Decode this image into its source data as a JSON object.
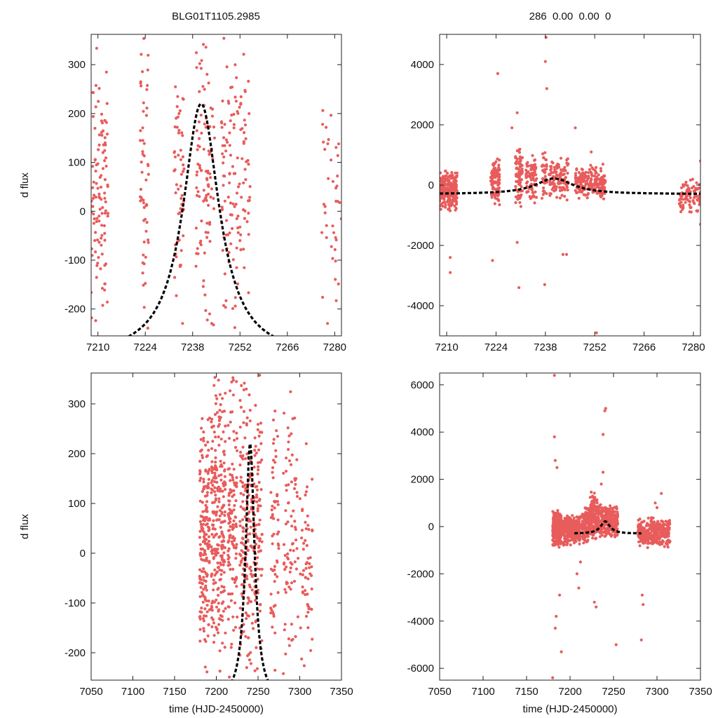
{
  "figure": {
    "title_left": "BLG01T1105.2985",
    "title_right": "286  0.00  0.00  0",
    "ylabel": "d flux",
    "xlabel": "time (HJD-2450000)"
  },
  "colors": {
    "points": "#e85c5c",
    "model": "#000000",
    "axes": "#222222"
  },
  "chart_data": [
    {
      "id": "top-left",
      "type": "scatter",
      "xlim": [
        7208,
        7282
      ],
      "ylim": [
        -255,
        362
      ],
      "xticks": [
        7210,
        7224,
        7238,
        7252,
        7266,
        7280
      ],
      "yticks": [
        -200,
        -100,
        0,
        100,
        200,
        300
      ],
      "xlabel": "",
      "ylabel": "d flux",
      "model": {
        "t0": 7240.5,
        "peak": 220,
        "baseline": -300,
        "width": 6.5,
        "from": 7208,
        "to": 7282
      },
      "clusters": [
        {
          "t_from": 7208,
          "t_to": 7213,
          "y_from": -245,
          "y_to": 345,
          "count": 110
        },
        {
          "t_from": 7222.5,
          "t_to": 7225,
          "y_from": -240,
          "y_to": 360,
          "count": 55
        },
        {
          "t_from": 7232.5,
          "t_to": 7235.5,
          "y_from": -245,
          "y_to": 355,
          "count": 55
        },
        {
          "t_from": 7239,
          "t_to": 7244.5,
          "y_from": -250,
          "y_to": 360,
          "count": 95
        },
        {
          "t_from": 7246.5,
          "t_to": 7255,
          "y_from": -250,
          "y_to": 358,
          "count": 130
        },
        {
          "t_from": 7276,
          "t_to": 7282,
          "y_from": -250,
          "y_to": 265,
          "count": 40
        }
      ]
    },
    {
      "id": "top-right",
      "type": "scatter",
      "xlim": [
        7208,
        7282
      ],
      "ylim": [
        -5000,
        5000
      ],
      "xticks": [
        7210,
        7224,
        7238,
        7252,
        7266,
        7280
      ],
      "yticks": [
        -4000,
        -2000,
        0,
        2000,
        4000
      ],
      "xlabel": "",
      "ylabel": "",
      "model": {
        "t0": 7240.5,
        "peak": 220,
        "baseline": -300,
        "width": 6.5,
        "from": 7208,
        "to": 7282
      },
      "clusters": [
        {
          "t_from": 7208,
          "t_to": 7213,
          "y_from": -900,
          "y_to": 500,
          "count": 260
        },
        {
          "t_from": 7222.5,
          "t_to": 7225,
          "y_from": -700,
          "y_to": 900,
          "count": 110
        },
        {
          "t_from": 7229.5,
          "t_to": 7231.5,
          "y_from": -900,
          "y_to": 1400,
          "count": 80
        },
        {
          "t_from": 7232.5,
          "t_to": 7235.5,
          "y_from": -700,
          "y_to": 1000,
          "count": 90
        },
        {
          "t_from": 7237,
          "t_to": 7238.5,
          "y_from": -600,
          "y_to": 1200,
          "count": 40
        },
        {
          "t_from": 7239,
          "t_to": 7244.5,
          "y_from": -600,
          "y_to": 900,
          "count": 120
        },
        {
          "t_from": 7246.5,
          "t_to": 7255,
          "y_from": -500,
          "y_to": 700,
          "count": 200
        },
        {
          "t_from": 7276,
          "t_to": 7282,
          "y_from": -900,
          "y_to": 200,
          "count": 90
        }
      ],
      "outliers": [
        [
          7211,
          -2900
        ],
        [
          7211,
          -2400
        ],
        [
          7223,
          -2500
        ],
        [
          7224.5,
          3700
        ],
        [
          7228.5,
          1900
        ],
        [
          7230,
          2400
        ],
        [
          7230,
          -1900
        ],
        [
          7230.5,
          -3400
        ],
        [
          7237.8,
          -3300
        ],
        [
          7238,
          4100
        ],
        [
          7238.2,
          4900
        ],
        [
          7238.4,
          3200
        ],
        [
          7243,
          -2300
        ],
        [
          7244,
          -2300
        ],
        [
          7246.5,
          1900
        ],
        [
          7252.5,
          -4900
        ],
        [
          7251,
          1100
        ],
        [
          7282,
          -1300
        ],
        [
          7282,
          800
        ]
      ]
    },
    {
      "id": "bottom-left",
      "type": "scatter",
      "xlim": [
        7050,
        7350
      ],
      "ylim": [
        -255,
        362
      ],
      "xticks": [
        7050,
        7100,
        7150,
        7200,
        7250,
        7300,
        7350
      ],
      "yticks": [
        -200,
        -100,
        0,
        100,
        200,
        300
      ],
      "xlabel": "time (HJD-2450000)",
      "ylabel": "d flux",
      "model": {
        "t0": 7240.5,
        "peak": 220,
        "baseline": -300,
        "width": 6.5,
        "from": 7198,
        "to": 7282
      },
      "clusters": [
        {
          "t_from": 7180,
          "t_to": 7192,
          "y_from": -250,
          "y_to": 300,
          "count": 180
        },
        {
          "t_from": 7194,
          "t_to": 7211,
          "y_from": -250,
          "y_to": 360,
          "count": 250
        },
        {
          "t_from": 7214,
          "t_to": 7225,
          "y_from": -250,
          "y_to": 360,
          "count": 130
        },
        {
          "t_from": 7228,
          "t_to": 7255,
          "y_from": -250,
          "y_to": 360,
          "count": 260
        },
        {
          "t_from": 7265,
          "t_to": 7275,
          "y_from": -250,
          "y_to": 320,
          "count": 60
        },
        {
          "t_from": 7280,
          "t_to": 7298,
          "y_from": -250,
          "y_to": 340,
          "count": 80
        },
        {
          "t_from": 7300,
          "t_to": 7315,
          "y_from": -250,
          "y_to": 220,
          "count": 60
        }
      ]
    },
    {
      "id": "bottom-right",
      "type": "scatter",
      "xlim": [
        7050,
        7350
      ],
      "ylim": [
        -6500,
        6500
      ],
      "xticks": [
        7050,
        7100,
        7150,
        7200,
        7250,
        7300,
        7350
      ],
      "yticks": [
        -6000,
        -4000,
        -2000,
        0,
        2000,
        4000,
        6000
      ],
      "xlabel": "time (HJD-2450000)",
      "ylabel": "",
      "model": {
        "t0": 7240.5,
        "peak": 220,
        "baseline": -300,
        "width": 6.5,
        "from": 7205,
        "to": 7282
      },
      "clusters": [
        {
          "t_from": 7180,
          "t_to": 7190,
          "y_from": -900,
          "y_to": 700,
          "count": 260
        },
        {
          "t_from": 7192,
          "t_to": 7212,
          "y_from": -800,
          "y_to": 500,
          "count": 320
        },
        {
          "t_from": 7214,
          "t_to": 7222,
          "y_from": -700,
          "y_to": 800,
          "count": 120
        },
        {
          "t_from": 7222,
          "t_to": 7232,
          "y_from": -600,
          "y_to": 1500,
          "count": 170
        },
        {
          "t_from": 7232,
          "t_to": 7255,
          "y_from": -500,
          "y_to": 1000,
          "count": 280
        },
        {
          "t_from": 7278,
          "t_to": 7315,
          "y_from": -900,
          "y_to": 400,
          "count": 360
        }
      ],
      "outliers": [
        [
          7180,
          -6400
        ],
        [
          7182,
          6400
        ],
        [
          7182,
          3800
        ],
        [
          7183,
          2800
        ],
        [
          7185,
          2500
        ],
        [
          7183,
          -4300
        ],
        [
          7184,
          -3800
        ],
        [
          7190,
          -5300
        ],
        [
          7188,
          -2900
        ],
        [
          7208,
          -2000
        ],
        [
          7210,
          -2600
        ],
        [
          7212,
          -1500
        ],
        [
          7238,
          3900
        ],
        [
          7240,
          4900
        ],
        [
          7241,
          5000
        ],
        [
          7236,
          1800
        ],
        [
          7238,
          2300
        ],
        [
          7253,
          -5000
        ],
        [
          7230,
          -3400
        ],
        [
          7228,
          -3200
        ],
        [
          7282,
          -4800
        ],
        [
          7284,
          -3300
        ],
        [
          7283,
          -2900
        ],
        [
          7298,
          1000
        ],
        [
          7305,
          1400
        ],
        [
          7300,
          800
        ]
      ]
    }
  ]
}
